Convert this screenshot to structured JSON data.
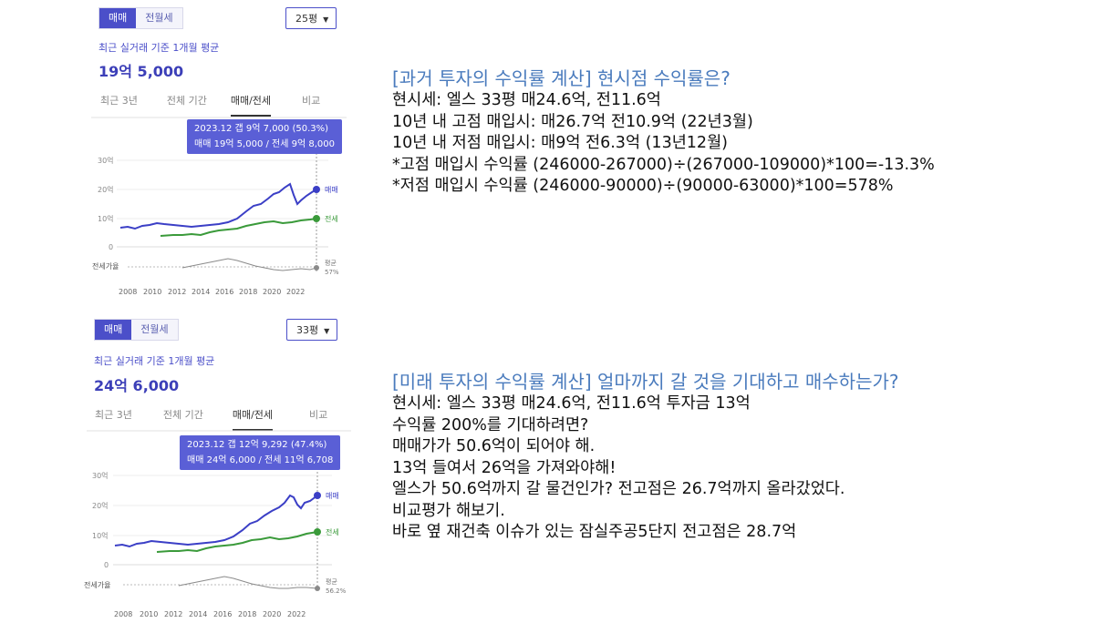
{
  "panels": [
    {
      "tabs": [
        "매매",
        "전월세"
      ],
      "size_select": "25평",
      "subtitle": "최근 실거래 기준 1개월 평균",
      "price": "19억 5,000",
      "period_tabs": [
        "최근 3년",
        "전체 기간",
        "매매/전세",
        "비교"
      ],
      "tooltip_line1": "2023.12  갭 9억 7,000 (50.3%)",
      "tooltip_line2": "매매 19억 5,000 / 전세 9억 8,000",
      "y_labels": [
        "30억",
        "20억",
        "10억",
        "0"
      ],
      "ratio_label": "전세가율",
      "sale_label": "매매",
      "jeonse_label": "전세",
      "avg_label": "평균",
      "avg_value": "57%",
      "x_labels": [
        "2008",
        "2010",
        "2012",
        "2014",
        "2016",
        "2018",
        "2020",
        "2022"
      ]
    },
    {
      "tabs": [
        "매매",
        "전월세"
      ],
      "size_select": "33평",
      "subtitle": "최근 실거래 기준 1개월 평균",
      "price": "24억 6,000",
      "period_tabs": [
        "최근 3년",
        "전체 기간",
        "매매/전세",
        "비교"
      ],
      "tooltip_line1": "2023.12  갭 12억 9,292 (47.4%)",
      "tooltip_line2": "매매 24억 6,000 / 전세 11억 6,708",
      "y_labels": [
        "30억",
        "20억",
        "10억",
        "0"
      ],
      "ratio_label": "전세가율",
      "sale_label": "매매",
      "jeonse_label": "전세",
      "avg_label": "평균",
      "avg_value": "56.2%",
      "x_labels": [
        "2008",
        "2010",
        "2012",
        "2014",
        "2016",
        "2018",
        "2020",
        "2022"
      ]
    }
  ],
  "past": {
    "title": "[과거 투자의 수익률 계산] 현시점 수익률은?",
    "lines": [
      "현시세: 엘스 33평 매24.6억, 전11.6억",
      "10년 내 고점 매입시: 매26.7억 전10.9억 (22년3월)",
      "10년 내 저점 매입시: 매9억 전6.3억 (13년12월)",
      "*고점 매입시 수익률 (246000-267000)÷(267000-109000)*100=-13.3%",
      "*저점 매입시 수익률 (246000-90000)÷(90000-63000)*100=578%"
    ]
  },
  "future": {
    "title": "[미래 투자의 수익률 계산] 얼마까지 갈 것을 기대하고 매수하는가?",
    "lines": [
      "현시세: 엘스 33평 매24.6억, 전11.6억 투자금 13억",
      "수익률 200%를 기대하려면?",
      "매매가가 50.6억이 되어야 해.",
      "13억 들여서 26억을 가져와야해!",
      "엘스가 50.6억까지 갈 물건인가? 전고점은 26.7억까지 올라갔었다.",
      "비교평가 해보기.",
      "바로 옆 재건축 이슈가 있는 잠실주공5단지 전고점은 28.7억"
    ]
  },
  "colors": {
    "accent": "#4b4fc9",
    "sale_line": "#3b3fc6",
    "jeonse_line": "#3a9a3a",
    "ratio_line": "#8a8a8a",
    "title_blue": "#4a7bbd"
  }
}
